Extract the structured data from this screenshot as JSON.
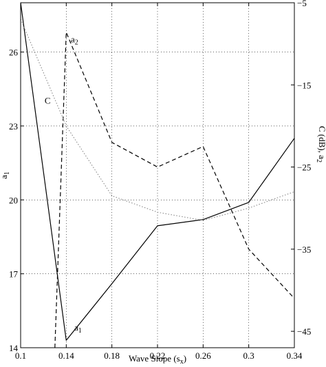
{
  "chart_data": {
    "type": "line",
    "xlabel": "Wave Slope (s",
    "xlabel_sub": "x",
    "xlabel_end": ")",
    "ylabel_left": "a",
    "ylabel_left_sub": "1",
    "ylabel_right": "C (dB), a",
    "ylabel_right_sub": "2",
    "xlim": [
      0.1,
      0.34
    ],
    "ylim_left": [
      14,
      28
    ],
    "ylim_right": [
      -47,
      -5
    ],
    "x_ticks": [
      0.1,
      0.14,
      0.18,
      0.22,
      0.26,
      0.3,
      0.34
    ],
    "x_tick_labels": [
      "0.1",
      "0.14",
      "0.18",
      "0.22",
      "0.26",
      "0.3",
      "0.34"
    ],
    "y_left_ticks": [
      14,
      17,
      20,
      23,
      26
    ],
    "y_left_tick_labels": [
      "14",
      "17",
      "20",
      "23",
      "26"
    ],
    "y_right_ticks": [
      -45,
      -35,
      -25,
      -15,
      -5
    ],
    "y_right_tick_labels": [
      "−45",
      "−35",
      "−25",
      "−15",
      "−5"
    ],
    "grid": true,
    "series": [
      {
        "name": "a",
        "name_sub": "1",
        "axis": "left",
        "style": "solid",
        "color": "#000000",
        "x": [
          0.1,
          0.14,
          0.18,
          0.22,
          0.26,
          0.3,
          0.34
        ],
        "y": [
          28,
          14.3,
          16.6,
          18.95,
          19.2,
          19.9,
          22.5
        ],
        "label_at": [
          0.147,
          14.7
        ]
      },
      {
        "name": "a",
        "name_sub": "2",
        "axis": "right",
        "style": "dashed",
        "color": "#000000",
        "x": [
          0.13,
          0.14,
          0.18,
          0.22,
          0.26,
          0.3,
          0.34
        ],
        "y": [
          -47,
          -8.6,
          -22,
          -25,
          -22.5,
          -35,
          -41
        ],
        "label_at": [
          0.144,
          -9.8
        ]
      },
      {
        "name": "C",
        "axis": "right",
        "style": "dotted",
        "color": "#888888",
        "x": [
          0.1,
          0.14,
          0.18,
          0.22,
          0.26,
          0.3,
          0.34
        ],
        "y": [
          -7,
          -20,
          -28.5,
          -30.5,
          -31.5,
          -30,
          -28
        ],
        "label_at": [
          0.121,
          -17.3
        ]
      }
    ]
  }
}
